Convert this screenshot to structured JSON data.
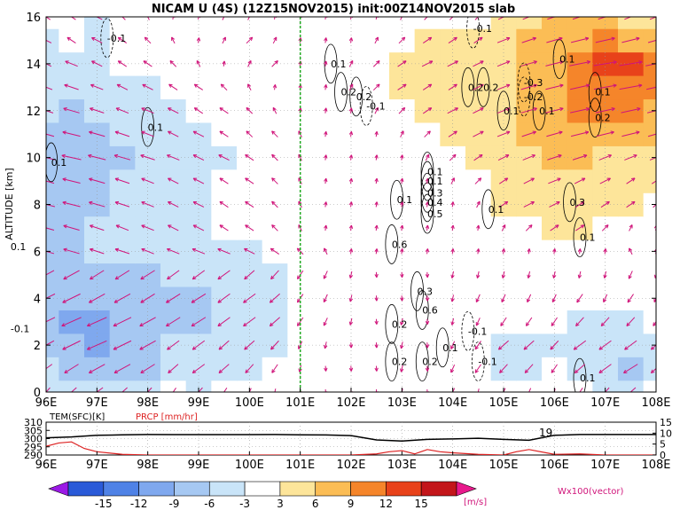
{
  "chart_data": [
    {
      "type": "heatmap",
      "title": "NICAM U (4S) (12Z15NOV2015) init:00Z14NOV2015 slab",
      "ylabel": "ALTITUDE [km]",
      "xlabel": "",
      "x_ticks": [
        "96E",
        "97E",
        "98E",
        "99E",
        "100E",
        "101E",
        "102E",
        "103E",
        "104E",
        "105E",
        "106E",
        "107E",
        "108E"
      ],
      "y_ticks": [
        "0",
        "2",
        "4",
        "6",
        "8",
        "10",
        "12",
        "14",
        "16"
      ],
      "xlim": [
        96,
        108
      ],
      "ylim": [
        0,
        16
      ],
      "grid": true,
      "reference_line": {
        "longitude": 101,
        "color": "#22aa22",
        "style": "dashed"
      },
      "contour_labels": [
        {
          "text": "-0.1",
          "lon": 97.2,
          "alt": 15.1
        },
        {
          "text": "0.1",
          "lon": 98.0,
          "alt": 11.3
        },
        {
          "text": "0.1",
          "lon": 96.1,
          "alt": 9.8
        },
        {
          "text": "0.1",
          "lon": 95.3,
          "alt": 6.2
        },
        {
          "text": "-0.1",
          "lon": 95.3,
          "alt": 2.7
        },
        {
          "text": "0.1",
          "lon": 101.6,
          "alt": 14.0
        },
        {
          "text": "0.2",
          "lon": 101.8,
          "alt": 12.8
        },
        {
          "text": "-0.1",
          "lon": 102.3,
          "alt": 12.2
        },
        {
          "text": "0.1",
          "lon": 103.5,
          "alt": 9.4
        },
        {
          "text": "0.1",
          "lon": 103.5,
          "alt": 9.0
        },
        {
          "text": "0.3",
          "lon": 103.5,
          "alt": 8.5
        },
        {
          "text": "0.4",
          "lon": 103.5,
          "alt": 8.1
        },
        {
          "text": "0.5",
          "lon": 103.5,
          "alt": 7.6
        },
        {
          "text": "0.1",
          "lon": 102.9,
          "alt": 8.2
        },
        {
          "text": "0.6",
          "lon": 102.8,
          "alt": 6.3
        },
        {
          "text": "0.6",
          "lon": 103.4,
          "alt": 3.5
        },
        {
          "text": "0.3",
          "lon": 103.3,
          "alt": 4.3
        },
        {
          "text": "0.2",
          "lon": 102.8,
          "alt": 2.9
        },
        {
          "text": "0.2",
          "lon": 102.8,
          "alt": 1.3
        },
        {
          "text": "0.2",
          "lon": 103.4,
          "alt": 1.3
        },
        {
          "text": "0.1",
          "lon": 103.8,
          "alt": 1.9
        },
        {
          "text": "-0.1",
          "lon": 104.3,
          "alt": 2.6
        },
        {
          "text": "-0.1",
          "lon": 104.5,
          "alt": 1.3
        },
        {
          "text": "0.2",
          "lon": 102.1,
          "alt": 12.6
        },
        {
          "text": "-0.1",
          "lon": 104.4,
          "alt": 15.5
        },
        {
          "text": "0.2",
          "lon": 104.3,
          "alt": 13.0
        },
        {
          "text": "0.2",
          "lon": 104.6,
          "alt": 13.0
        },
        {
          "text": "-0.3",
          "lon": 105.4,
          "alt": 13.2
        },
        {
          "text": "-0.2",
          "lon": 105.4,
          "alt": 12.6
        },
        {
          "text": "0.1",
          "lon": 105.0,
          "alt": 12.0
        },
        {
          "text": "0.1",
          "lon": 105.7,
          "alt": 12.0
        },
        {
          "text": "0.1",
          "lon": 106.1,
          "alt": 14.2
        },
        {
          "text": "0.1",
          "lon": 106.8,
          "alt": 12.8
        },
        {
          "text": "0.2",
          "lon": 106.8,
          "alt": 11.7
        },
        {
          "text": "0.1",
          "lon": 104.7,
          "alt": 7.8
        },
        {
          "text": "0.3",
          "lon": 106.3,
          "alt": 8.1
        },
        {
          "text": "0.1",
          "lon": 106.5,
          "alt": 6.6
        },
        {
          "text": "0.1",
          "lon": 106.5,
          "alt": 0.6
        }
      ],
      "u_field_sample": {
        "lon": [
          96,
          96.5,
          97,
          97.5,
          98,
          98.5,
          99,
          99.5,
          100,
          100.5,
          101,
          101.5,
          102,
          102.5,
          103,
          103.5,
          104,
          104.5,
          105,
          105.5,
          106,
          106.5,
          107,
          107.5,
          108
        ],
        "alt": [
          0,
          1,
          2,
          3,
          4,
          5,
          6,
          7,
          8,
          9,
          10,
          11,
          12,
          13,
          14,
          15,
          16
        ],
        "u_ms": [
          [
            -4,
            -5,
            -6,
            -5,
            -4,
            -3,
            -4,
            -3,
            -2,
            -1,
            0,
            0,
            0,
            0,
            -1,
            0,
            -2,
            -1,
            -2,
            -2,
            -1,
            -3,
            -4,
            -5,
            -3
          ],
          [
            -6,
            -7,
            -8,
            -8,
            -7,
            -5,
            -6,
            -5,
            -4,
            -3,
            -1,
            0,
            0,
            0,
            -1,
            0,
            -2,
            -3,
            -4,
            -4,
            -3,
            -5,
            -6,
            -7,
            -5
          ],
          [
            -8,
            -9,
            -10,
            -9,
            -8,
            -6,
            -6,
            -5,
            -5,
            -4,
            -2,
            -1,
            0,
            0,
            -1,
            0,
            -2,
            -3,
            -5,
            -5,
            -4,
            -6,
            -6,
            -6,
            -5
          ],
          [
            -9,
            -10,
            -10,
            -9,
            -8,
            -7,
            -7,
            -6,
            -6,
            -5,
            -3,
            -2,
            -1,
            0,
            -1,
            0,
            -1,
            -2,
            -3,
            -3,
            -3,
            -4,
            -4,
            -4,
            -3
          ],
          [
            -9,
            -9,
            -8,
            -8,
            -7,
            -7,
            -7,
            -6,
            -6,
            -5,
            -3,
            -2,
            -1,
            0,
            0,
            0,
            -1,
            -2,
            -2,
            -2,
            -2,
            -3,
            -2,
            -3,
            -2
          ],
          [
            -8,
            -8,
            -7,
            -7,
            -7,
            -6,
            -6,
            -6,
            -5,
            -4,
            -3,
            -2,
            -1,
            0,
            0,
            0,
            -1,
            -1,
            -1,
            -1,
            -1,
            -1,
            -1,
            -2,
            -1
          ],
          [
            -7,
            -7,
            -6,
            -6,
            -5,
            -5,
            -5,
            -5,
            -4,
            -3,
            -2,
            -1,
            0,
            0,
            0,
            0,
            0,
            0,
            0,
            0,
            0,
            0,
            0,
            -1,
            0
          ],
          [
            -7,
            -7,
            -6,
            -5,
            -5,
            -4,
            -4,
            -3,
            -3,
            -2,
            -1,
            0,
            0,
            0,
            0,
            0,
            0,
            0,
            1,
            2,
            3,
            3,
            2,
            1,
            0
          ],
          [
            -8,
            -8,
            -7,
            -6,
            -5,
            -4,
            -4,
            -3,
            -3,
            -2,
            -1,
            0,
            0,
            0,
            0,
            0,
            0,
            1,
            3,
            4,
            4,
            3,
            3,
            3,
            2
          ],
          [
            -7,
            -8,
            -7,
            -6,
            -5,
            -4,
            -4,
            -3,
            -3,
            -2,
            -1,
            0,
            0,
            0,
            0,
            0,
            1,
            2,
            3,
            4,
            5,
            4,
            4,
            3,
            3
          ],
          [
            -8,
            -9,
            -8,
            -7,
            -6,
            -5,
            -4,
            -4,
            -3,
            -2,
            -1,
            0,
            0,
            0,
            0,
            1,
            2,
            3,
            4,
            5,
            6,
            6,
            5,
            5,
            5
          ],
          [
            -7,
            -8,
            -7,
            -6,
            -5,
            -4,
            -4,
            -3,
            -2,
            -2,
            -1,
            0,
            0,
            0,
            1,
            2,
            3,
            4,
            5,
            6,
            7,
            8,
            8,
            8,
            7
          ],
          [
            -6,
            -7,
            -6,
            -5,
            -5,
            -4,
            -3,
            -3,
            -2,
            -1,
            0,
            0,
            0,
            1,
            2,
            3,
            4,
            4,
            5,
            7,
            8,
            9,
            9,
            9,
            8
          ],
          [
            -5,
            -6,
            -5,
            -4,
            -4,
            -3,
            -3,
            -2,
            -1,
            0,
            0,
            0,
            1,
            2,
            3,
            3,
            3,
            4,
            5,
            7,
            8,
            9,
            11,
            11,
            9
          ],
          [
            -4,
            -5,
            -4,
            -3,
            -3,
            -2,
            -1,
            0,
            1,
            2,
            0,
            0,
            1,
            2,
            3,
            4,
            4,
            4,
            5,
            7,
            8,
            10,
            12,
            12,
            10
          ],
          [
            -4,
            -3,
            -4,
            -3,
            -2,
            -1,
            0,
            1,
            2,
            1,
            0,
            0,
            0,
            1,
            2,
            3,
            3,
            3,
            5,
            6,
            7,
            8,
            9,
            8,
            7
          ],
          [
            -3,
            -3,
            -4,
            -2,
            -1,
            0,
            0,
            1,
            1,
            0,
            0,
            0,
            0,
            0,
            1,
            2,
            2,
            2,
            4,
            5,
            6,
            6,
            6,
            5,
            5
          ]
        ]
      }
    },
    {
      "type": "line",
      "xlim": [
        96,
        108
      ],
      "x_ticks": [
        "96E",
        "97E",
        "98E",
        "99E",
        "100E",
        "101E",
        "102E",
        "103E",
        "104E",
        "105E",
        "106E",
        "107E",
        "108E"
      ],
      "left_axis": {
        "label": "TEM(SFC)[K]",
        "ylim": [
          290,
          310
        ],
        "ticks": [
          "290",
          "295",
          "300",
          "305",
          "310"
        ]
      },
      "right_axis": {
        "label": "PRCP [mm/hr]",
        "ylim": [
          0,
          15
        ],
        "ticks": [
          "0",
          "5",
          "10",
          "15"
        ]
      },
      "annotation": "19",
      "series": [
        {
          "name": "TEM(SFC)[K]",
          "color": "#000000",
          "x": [
            96,
            96.5,
            97,
            97.5,
            98,
            98.5,
            99,
            99.5,
            100,
            100.5,
            101,
            101.5,
            102,
            102.5,
            103,
            103.5,
            104,
            104.5,
            105,
            105.5,
            106,
            106.5,
            107,
            107.5,
            108
          ],
          "values": [
            300.5,
            301,
            302,
            302.3,
            302.5,
            302.4,
            302.4,
            302.4,
            302.4,
            302.5,
            302.3,
            302.2,
            301.8,
            299.2,
            298.5,
            299.5,
            299.8,
            300.2,
            299.5,
            299,
            302,
            302.5,
            302.5,
            302.5,
            302.5
          ]
        },
        {
          "name": "PRCP [mm/hr]",
          "color": "#dd2222",
          "x": [
            96,
            96.25,
            96.5,
            96.75,
            97,
            97.5,
            98,
            99,
            100,
            101,
            102,
            102.5,
            102.75,
            103,
            103.25,
            103.5,
            103.75,
            104,
            104.5,
            105,
            105.25,
            105.5,
            106,
            106.5,
            107,
            108
          ],
          "values": [
            4,
            5.5,
            6,
            3,
            1.5,
            0.3,
            0,
            0,
            0,
            0,
            0,
            0.5,
            1.5,
            2,
            0.5,
            2.5,
            1.5,
            1,
            0.3,
            0,
            1.5,
            2.5,
            0.3,
            0.5,
            0,
            0
          ]
        }
      ]
    }
  ],
  "colorbar": {
    "ticks": [
      "-15",
      "-12",
      "-9",
      "-6",
      "-3",
      "3",
      "6",
      "9",
      "12",
      "15"
    ],
    "colors": [
      "#2a5ad8",
      "#4f82e6",
      "#7fa8ee",
      "#a6c8f2",
      "#c9e4f8",
      "#ffffff",
      "#fde59a",
      "#fbbd55",
      "#f5852a",
      "#e8421a",
      "#c3161a"
    ],
    "low_extend_color": "#9b19e6",
    "high_extend_color": "#e8198c",
    "units": "[m/s]"
  },
  "vector_label": "Wx100(vector)"
}
